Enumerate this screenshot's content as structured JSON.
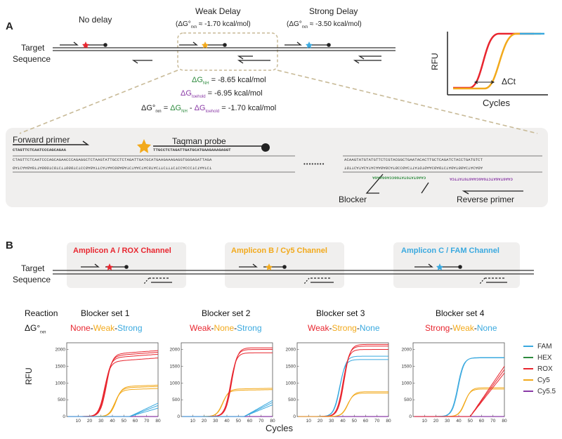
{
  "colors": {
    "red": "#e8262f",
    "orange": "#f2a91b",
    "blue": "#3aa9df",
    "green": "#2e8b3e",
    "purple": "#8a3aa6",
    "panel_bg": "#f0efee",
    "tan": "#c8ba97"
  },
  "panel_a": {
    "letter": "A",
    "no_delay": "No delay",
    "weak_delay": "Weak Delay",
    "weak_dg_prefix": "(ΔG°",
    "weak_dg_sub": "rxn",
    "weak_dg_value": " ≈ -1.70 kcal/mol)",
    "strong_delay": "Strong Delay",
    "strong_dg_prefix": "(ΔG°",
    "strong_dg_sub": "rxn",
    "strong_dg_value": " ≈ -3.50 kcal/mol)",
    "target_label_1": "Target",
    "target_label_2": "Sequence",
    "dg_nh_prefix": "ΔG",
    "dg_nh_sub": "NH",
    "dg_nh_value": " = -8.65 kcal/mol",
    "dg_toe_prefix": "ΔG",
    "dg_toe_sub": "toehold",
    "dg_toe_value": " = -6.95 kcal/mol",
    "eq_lhs": "ΔG°",
    "eq_lhs_sub": "rxn",
    "eq_eq": " = ",
    "eq_t1": "ΔG",
    "eq_t1_sub": "NH",
    "eq_minus": " - ",
    "eq_t2": "ΔG",
    "eq_t2_sub": "toehold",
    "eq_rhs": " = -1.70 kcal/mol",
    "rfu_label": "RFU",
    "cycles_label": "Cycles",
    "delta_ct": "ΔCt",
    "forward_primer": "Forward primer",
    "taqman_probe": "Taqman probe",
    "blocker": "Blocker",
    "reverse_primer": "Reverse primer",
    "dots": "••••••••",
    "seq_fwd_primer": "CTAGTTCTCAATCCCAGCAGAA",
    "seq_probe": "TTGCCTCTAGATTGATGCATGAAGAAAGAGGT",
    "seq_top_left": "CTAGTTCTCAATCCCAGCAGAACCCAGAGGCTCTAAGTATTGCCTCTAGATTGATGCATGAAGAAAGAGGTGGGAGATTAGA",
    "seq_bot_left": "GATCAAGAGTTAGGGTCGTCTTGGGTCTCCGAGATTCATAACGGAGATCTAACTACGTACTTCTTTCTCCACCCTCTAATCT",
    "seq_top_right": "ACAAGTATGTATGTTCTCGTACGGCTGAATACACTTGCTCAGATCTACCTGATGTCT",
    "seq_bot_right": "TGTTCATACATACAAGAGCATGCCGACTTATGTGAACGAGTCTAGATGGACTACAGA",
    "seq_blocker": "CAAGTATGTATGGCCAGGAAGA",
    "seq_rev_primer": "CAAGTAGATCTGAGCAAGTGTATTCA"
  },
  "panel_b": {
    "letter": "B",
    "amplicon_a": "Amplicon A / ROX Channel",
    "amplicon_b": "Amplicon B / Cy5 Channel",
    "amplicon_c": "Amplicon C / FAM Channel",
    "target_label_1": "Target",
    "target_label_2": "Sequence",
    "reaction_label": "Reaction",
    "dg_label_prefix": "ΔG°",
    "dg_label_sub": "rxn",
    "rfu_label": "RFU",
    "cycles_label": "Cycles",
    "sets": [
      {
        "title": "Blocker set 1",
        "w1": "None",
        "w2": "Weak",
        "w3": "Strong"
      },
      {
        "title": "Blocker set 2",
        "w1": "Weak",
        "w2": "None",
        "w3": "Strong"
      },
      {
        "title": "Blocker set 3",
        "w1": "Weak",
        "w2": "Strong",
        "w3": "None"
      },
      {
        "title": "Blocker set 4",
        "w1": "Strong",
        "w2": "Weak",
        "w3": "None"
      }
    ],
    "legend": [
      {
        "name": "FAM",
        "color": "#3aa9df"
      },
      {
        "name": "HEX",
        "color": "#2e8b3e"
      },
      {
        "name": "ROX",
        "color": "#e8262f"
      },
      {
        "name": "Cy5",
        "color": "#f2a91b"
      },
      {
        "name": "Cy5.5",
        "color": "#8a3aa6"
      }
    ]
  },
  "chart_data": {
    "type": "line",
    "x_ticks": [
      10,
      20,
      30,
      40,
      50,
      60,
      70,
      80
    ],
    "y_ticks_first": [
      0,
      500,
      1000,
      1500,
      2000
    ],
    "y_ticks_other": [
      0,
      500,
      1000,
      1500,
      2000
    ],
    "xlim": [
      0,
      80
    ],
    "ylim": [
      0,
      2200
    ],
    "panels": [
      {
        "title": "Blocker set 1",
        "series": [
          {
            "channel": "ROX",
            "ct": 33,
            "plateau": [
              1650,
              1760,
              1820,
              1870
            ],
            "slope": 2.5
          },
          {
            "channel": "Cy5",
            "ct": 42,
            "plateau": [
              800,
              860,
              900
            ],
            "slope": 1.2
          },
          {
            "channel": "FAM",
            "ct": 55,
            "plateau": [
              250,
              330,
              400
            ],
            "slope": 0
          }
        ]
      },
      {
        "title": "Blocker set 2",
        "series": [
          {
            "channel": "Cy5",
            "ct": 36,
            "plateau": [
              780,
              820
            ],
            "slope": 0.6
          },
          {
            "channel": "ROX",
            "ct": 43,
            "plateau": [
              1900,
              2000,
              2050
            ],
            "slope": 0
          },
          {
            "channel": "FAM",
            "ct": 55,
            "plateau": [
              350,
              420,
              480
            ],
            "slope": 0
          }
        ]
      },
      {
        "title": "Blocker set 3",
        "series": [
          {
            "channel": "FAM",
            "ct": 37,
            "plateau": [
              1700,
              1800
            ],
            "slope": 0
          },
          {
            "channel": "ROX",
            "ct": 40,
            "plateau": [
              2000,
              2100,
              2150
            ],
            "slope": 0
          },
          {
            "channel": "Cy5",
            "ct": 44,
            "plateau": [
              700,
              740
            ],
            "slope": 0
          }
        ]
      },
      {
        "title": "Blocker set 4",
        "series": [
          {
            "channel": "FAM",
            "ct": 39,
            "plateau": [
              1750,
              1760
            ],
            "slope": 0
          },
          {
            "channel": "Cy5",
            "ct": 45,
            "plateau": [
              820,
              860
            ],
            "slope": 0
          },
          {
            "channel": "ROX",
            "ct": 58,
            "plateau": [
              1300,
              1400,
              1500
            ],
            "slope": 0
          }
        ]
      }
    ]
  }
}
